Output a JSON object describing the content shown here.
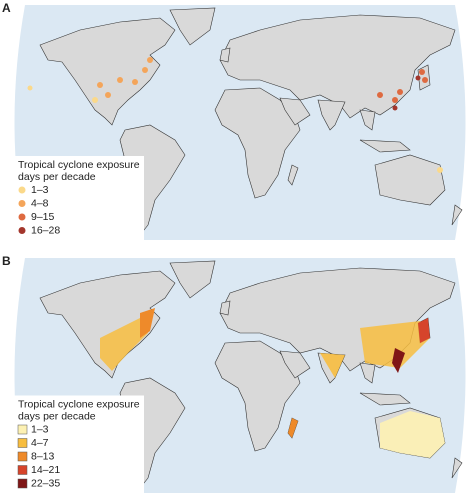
{
  "panels": [
    {
      "label": "A",
      "marker": "circle",
      "legend": {
        "title_lines": [
          "Tropical cyclone exposure",
          "days per decade"
        ],
        "items": [
          {
            "label": "1–3",
            "color": "#fbd98a"
          },
          {
            "label": "4–8",
            "color": "#f4a55a"
          },
          {
            "label": "9–15",
            "color": "#de6a40"
          },
          {
            "label": "16–28",
            "color": "#a3362c"
          }
        ]
      }
    },
    {
      "label": "B",
      "marker": "square",
      "legend": {
        "title_lines": [
          "Tropical cyclone exposure",
          "days per decade"
        ],
        "items": [
          {
            "label": "1–3",
            "color": "#fdf1b3"
          },
          {
            "label": "4–7",
            "color": "#f7bd3f"
          },
          {
            "label": "8–13",
            "color": "#ee8a2a"
          },
          {
            "label": "14–21",
            "color": "#d6442b"
          },
          {
            "label": "22–35",
            "color": "#7f1616"
          }
        ]
      }
    }
  ]
}
